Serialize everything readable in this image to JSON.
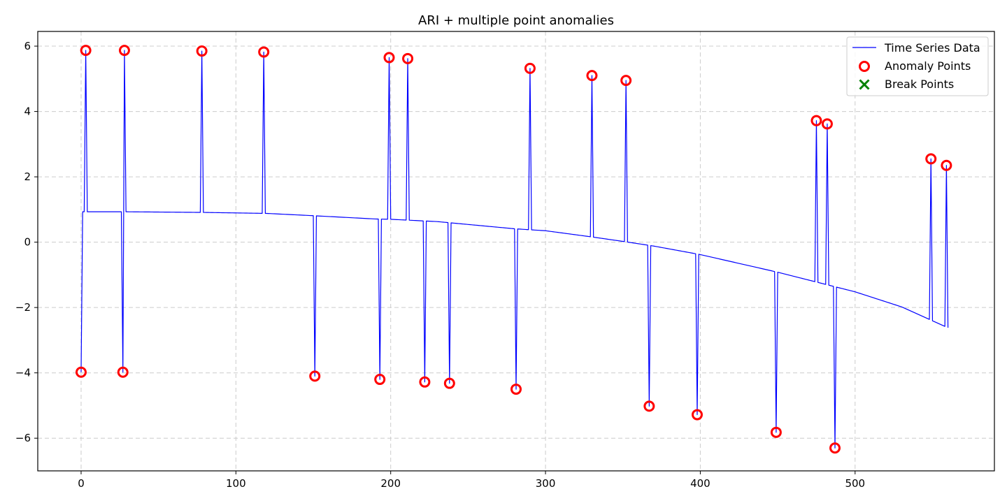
{
  "chart_data": {
    "type": "line",
    "title": "ARI + multiple point anomalies",
    "xlabel": "",
    "ylabel": "",
    "xlim": [
      -28,
      590
    ],
    "ylim": [
      -7.0,
      6.45
    ],
    "xticks": [
      0,
      100,
      200,
      300,
      400,
      500
    ],
    "yticks": [
      -6,
      -4,
      -2,
      0,
      2,
      4,
      6
    ],
    "grid": true,
    "legend_position": "upper right",
    "colors": {
      "series": "#0000ff",
      "anomaly": "#ff0000",
      "break": "#008000",
      "grid": "#cccccc"
    },
    "series": [
      {
        "name": "Time Series Data",
        "style": "line",
        "trend": {
          "x": [
            0,
            1,
            30,
            80,
            120,
            150,
            190,
            200,
            230,
            280,
            300,
            330,
            352,
            370,
            400,
            450,
            480,
            500,
            530,
            560
          ],
          "y": [
            -3.98,
            0.93,
            0.93,
            0.91,
            0.88,
            0.81,
            0.71,
            0.7,
            0.63,
            0.41,
            0.35,
            0.16,
            0.01,
            -0.12,
            -0.38,
            -0.92,
            -1.28,
            -1.52,
            -1.98,
            -2.62
          ]
        }
      },
      {
        "name": "Anomaly Points",
        "style": "ring",
        "x": [
          0,
          3,
          27,
          28,
          78,
          118,
          151,
          193,
          199,
          211,
          222,
          238,
          281,
          290,
          330,
          352,
          367,
          398,
          449,
          475,
          482,
          487,
          549,
          559
        ],
        "y": [
          -3.98,
          5.87,
          -3.98,
          5.87,
          5.85,
          5.82,
          -4.1,
          -4.2,
          5.65,
          5.62,
          -4.28,
          -4.32,
          -4.5,
          5.32,
          5.1,
          4.95,
          -5.02,
          -5.28,
          -5.82,
          3.72,
          3.62,
          -6.3,
          2.55,
          2.35
        ]
      },
      {
        "name": "Break Points",
        "style": "cross",
        "x": [],
        "y": []
      }
    ]
  }
}
